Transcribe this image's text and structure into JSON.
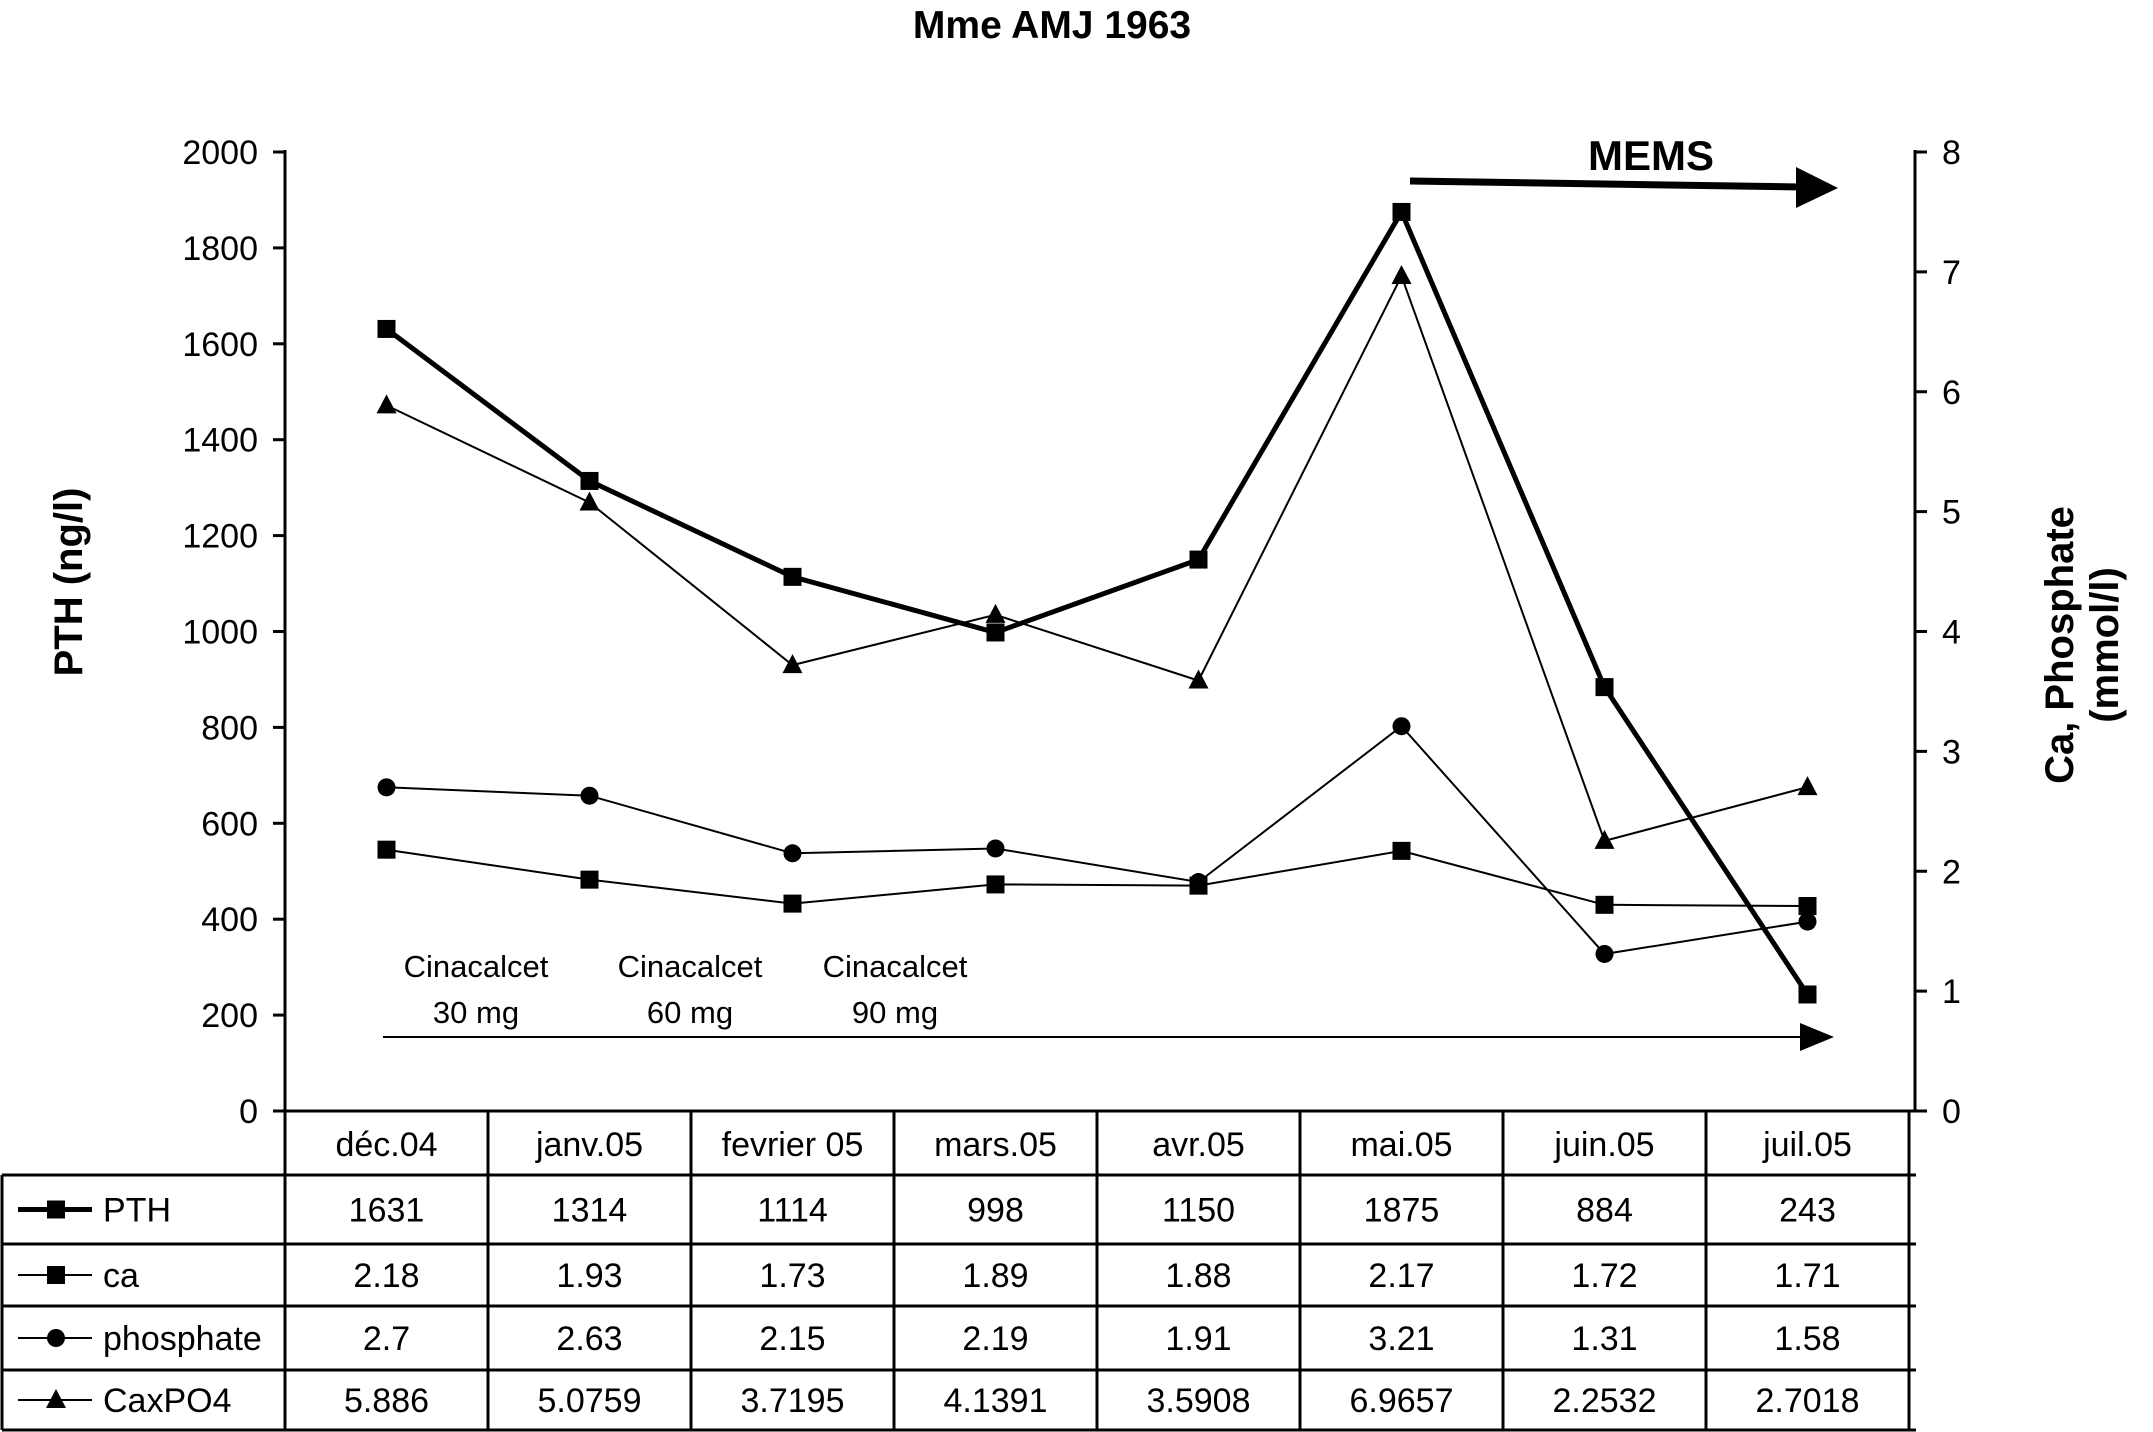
{
  "chart_data": {
    "type": "line",
    "title": "Mme AMJ 1963",
    "categories": [
      "déc.04",
      "janv.05",
      "fevrier 05",
      "mars.05",
      "avr.05",
      "mai.05",
      "juin.05",
      "juil.05"
    ],
    "y_left": {
      "label": "PTH (ng/l)",
      "range": [
        0,
        2000
      ],
      "ticks": [
        "0",
        "200",
        "400",
        "600",
        "800",
        "1000",
        "1200",
        "1400",
        "1600",
        "1800",
        "2000"
      ]
    },
    "y_right": {
      "label_line1": "Ca, Phosphate",
      "label_line2": "(mmol/l)",
      "range": [
        0,
        8
      ],
      "ticks": [
        "0",
        "1",
        "2",
        "3",
        "4",
        "5",
        "6",
        "7",
        "8"
      ]
    },
    "grid": false,
    "legend_placement": "table-below",
    "series": [
      {
        "name": "PTH",
        "axis": "left",
        "marker": "square",
        "weight": "bold",
        "values": [
          1631,
          1314,
          1114,
          998,
          1150,
          1875,
          884,
          243
        ],
        "display": [
          "1631",
          "1314",
          "1114",
          "998",
          "1150",
          "1875",
          "884",
          "243"
        ]
      },
      {
        "name": "ca",
        "axis": "right",
        "marker": "square",
        "weight": "thin",
        "values": [
          2.18,
          1.93,
          1.73,
          1.89,
          1.88,
          2.17,
          1.72,
          1.71
        ],
        "display": [
          "2.18",
          "1.93",
          "1.73",
          "1.89",
          "1.88",
          "2.17",
          "1.72",
          "1.71"
        ]
      },
      {
        "name": "phosphate",
        "axis": "right",
        "marker": "circle",
        "weight": "thin",
        "values": [
          2.7,
          2.63,
          2.15,
          2.19,
          1.91,
          3.21,
          1.31,
          1.58
        ],
        "display": [
          "2.7",
          "2.63",
          "2.15",
          "2.19",
          "1.91",
          "3.21",
          "1.31",
          "1.58"
        ]
      },
      {
        "name": "CaxPO4",
        "axis": "right",
        "marker": "triangle",
        "weight": "thin",
        "values": [
          5.886,
          5.0759,
          3.7195,
          4.1391,
          3.5908,
          6.9657,
          2.2532,
          2.7018
        ],
        "display": [
          "5.886",
          "5.0759",
          "3.7195",
          "4.1391",
          "3.5908",
          "6.9657",
          "2.2532",
          "2.7018"
        ]
      }
    ],
    "annotations": {
      "treatments": [
        {
          "line1": "Cinacalcet",
          "line2": "30 mg"
        },
        {
          "line1": "Cinacalcet",
          "line2": "60 mg"
        },
        {
          "line1": "Cinacalcet",
          "line2": "90 mg"
        }
      ],
      "mems": "MEMS"
    }
  }
}
